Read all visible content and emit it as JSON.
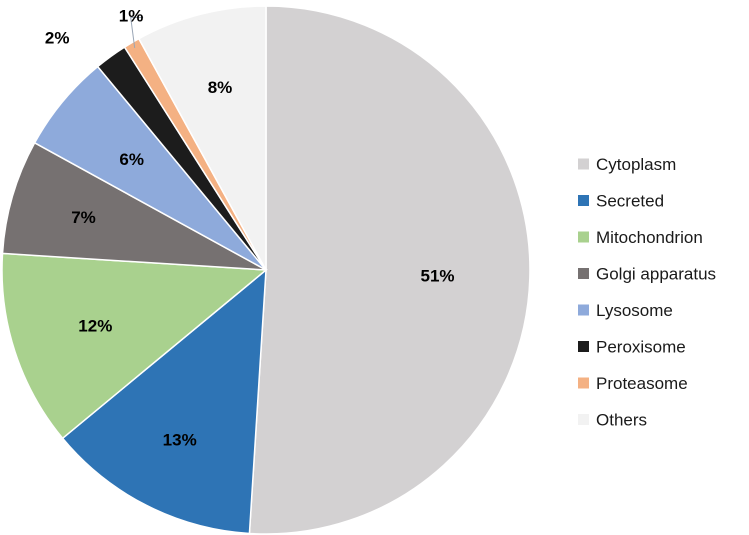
{
  "chart_data": {
    "type": "pie",
    "categories": [
      "Cytoplasm",
      "Secreted",
      "Mitochondrion",
      "Golgi apparatus",
      "Lysosome",
      "Peroxisome",
      "Proteasome",
      "Others"
    ],
    "values": [
      51,
      13,
      12,
      7,
      6,
      2,
      1,
      8
    ],
    "labels": [
      "51%",
      "13%",
      "12%",
      "7%",
      "6%",
      "2%",
      "1%",
      "8%"
    ],
    "colors": [
      "#d3d1d2",
      "#2e74b5",
      "#a9d18e",
      "#767171",
      "#8eaadb",
      "#1c1c1c",
      "#f4b183",
      "#f2f2f2"
    ],
    "start_angle": "12 o'clock",
    "direction": "clockwise",
    "legend_position": "right"
  }
}
